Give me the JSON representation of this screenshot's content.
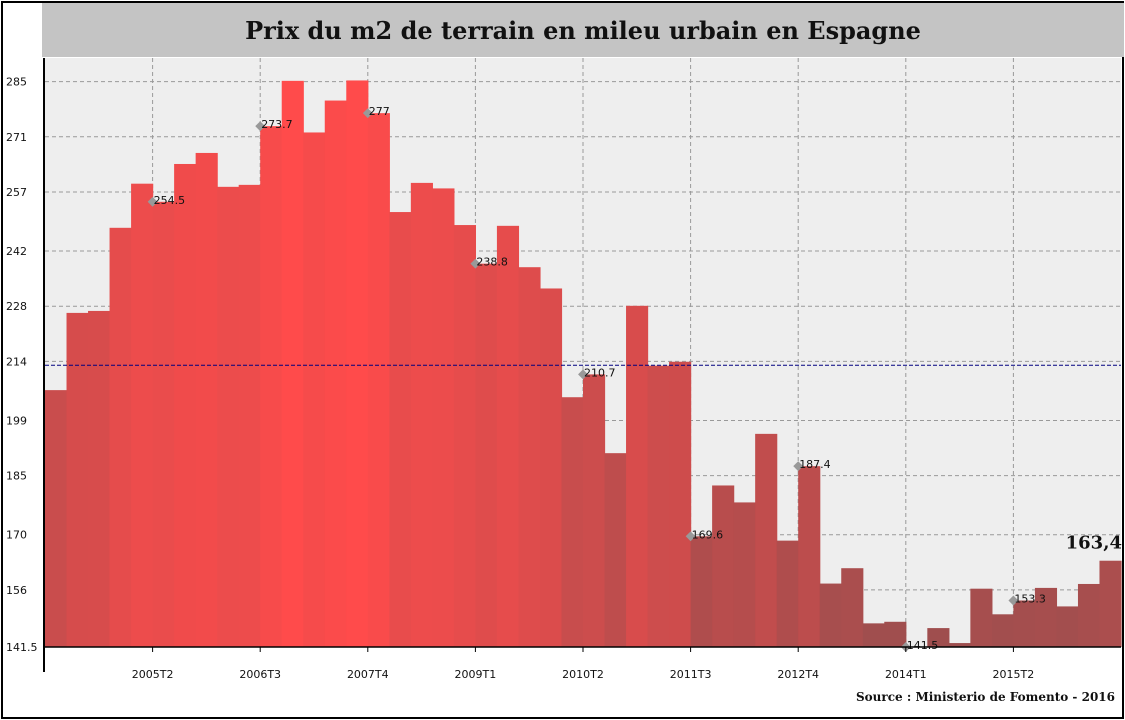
{
  "chart_data": {
    "type": "bar",
    "title": "Prix du m2 de terrain en mileu urbain en Espagne",
    "source": "Source : Ministerio de Fomento - 2016",
    "ylim": [
      141.5,
      291
    ],
    "yticks": [
      "141.5",
      "156",
      "170",
      "185",
      "199",
      "214",
      "228",
      "242",
      "257",
      "271",
      "285"
    ],
    "xticks": [
      {
        "index": 5,
        "label": "2005T2"
      },
      {
        "index": 10,
        "label": "2006T3"
      },
      {
        "index": 15,
        "label": "2007T4"
      },
      {
        "index": 20,
        "label": "2009T1"
      },
      {
        "index": 25,
        "label": "2010T2"
      },
      {
        "index": 30,
        "label": "2011T3"
      },
      {
        "index": 35,
        "label": "2012T4"
      },
      {
        "index": 40,
        "label": "2014T1"
      },
      {
        "index": 45,
        "label": "2015T2"
      }
    ],
    "reference_line": 213,
    "grid": true,
    "values": [
      206.7,
      226.3,
      226.8,
      247.9,
      259.1,
      254.5,
      264.1,
      266.9,
      258.3,
      258.8,
      273.7,
      285.2,
      272.1,
      280.2,
      285.3,
      277,
      251.9,
      259.3,
      257.9,
      248.6,
      238.8,
      248.4,
      237.9,
      232.5,
      204.9,
      210.7,
      190.7,
      228.1,
      212.9,
      213.9,
      169.6,
      182.5,
      178.2,
      195.6,
      168.5,
      187.4,
      157.6,
      161.5,
      147.5,
      147.9,
      141.5,
      146.3,
      142.5,
      156.3,
      149.8,
      153.3,
      156.5,
      151.8,
      157.5,
      163.4
    ],
    "data_labels": [
      {
        "index": 5,
        "text": "254.5"
      },
      {
        "index": 10,
        "text": "273.7"
      },
      {
        "index": 15,
        "text": "277"
      },
      {
        "index": 20,
        "text": "238.8"
      },
      {
        "index": 25,
        "text": "210.7"
      },
      {
        "index": 30,
        "text": "169.6"
      },
      {
        "index": 35,
        "text": "187.4"
      },
      {
        "index": 40,
        "text": "141.5"
      },
      {
        "index": 45,
        "text": "153.3"
      }
    ],
    "last_label": "163,4",
    "colors": {
      "plot_bg": "#eeeeee",
      "title_bg": "#c4c4c4",
      "bar_peak": "#ff4b4b",
      "bar_low": "#9c4e4e",
      "reference_line": "#000080",
      "grid": "#999999"
    }
  }
}
